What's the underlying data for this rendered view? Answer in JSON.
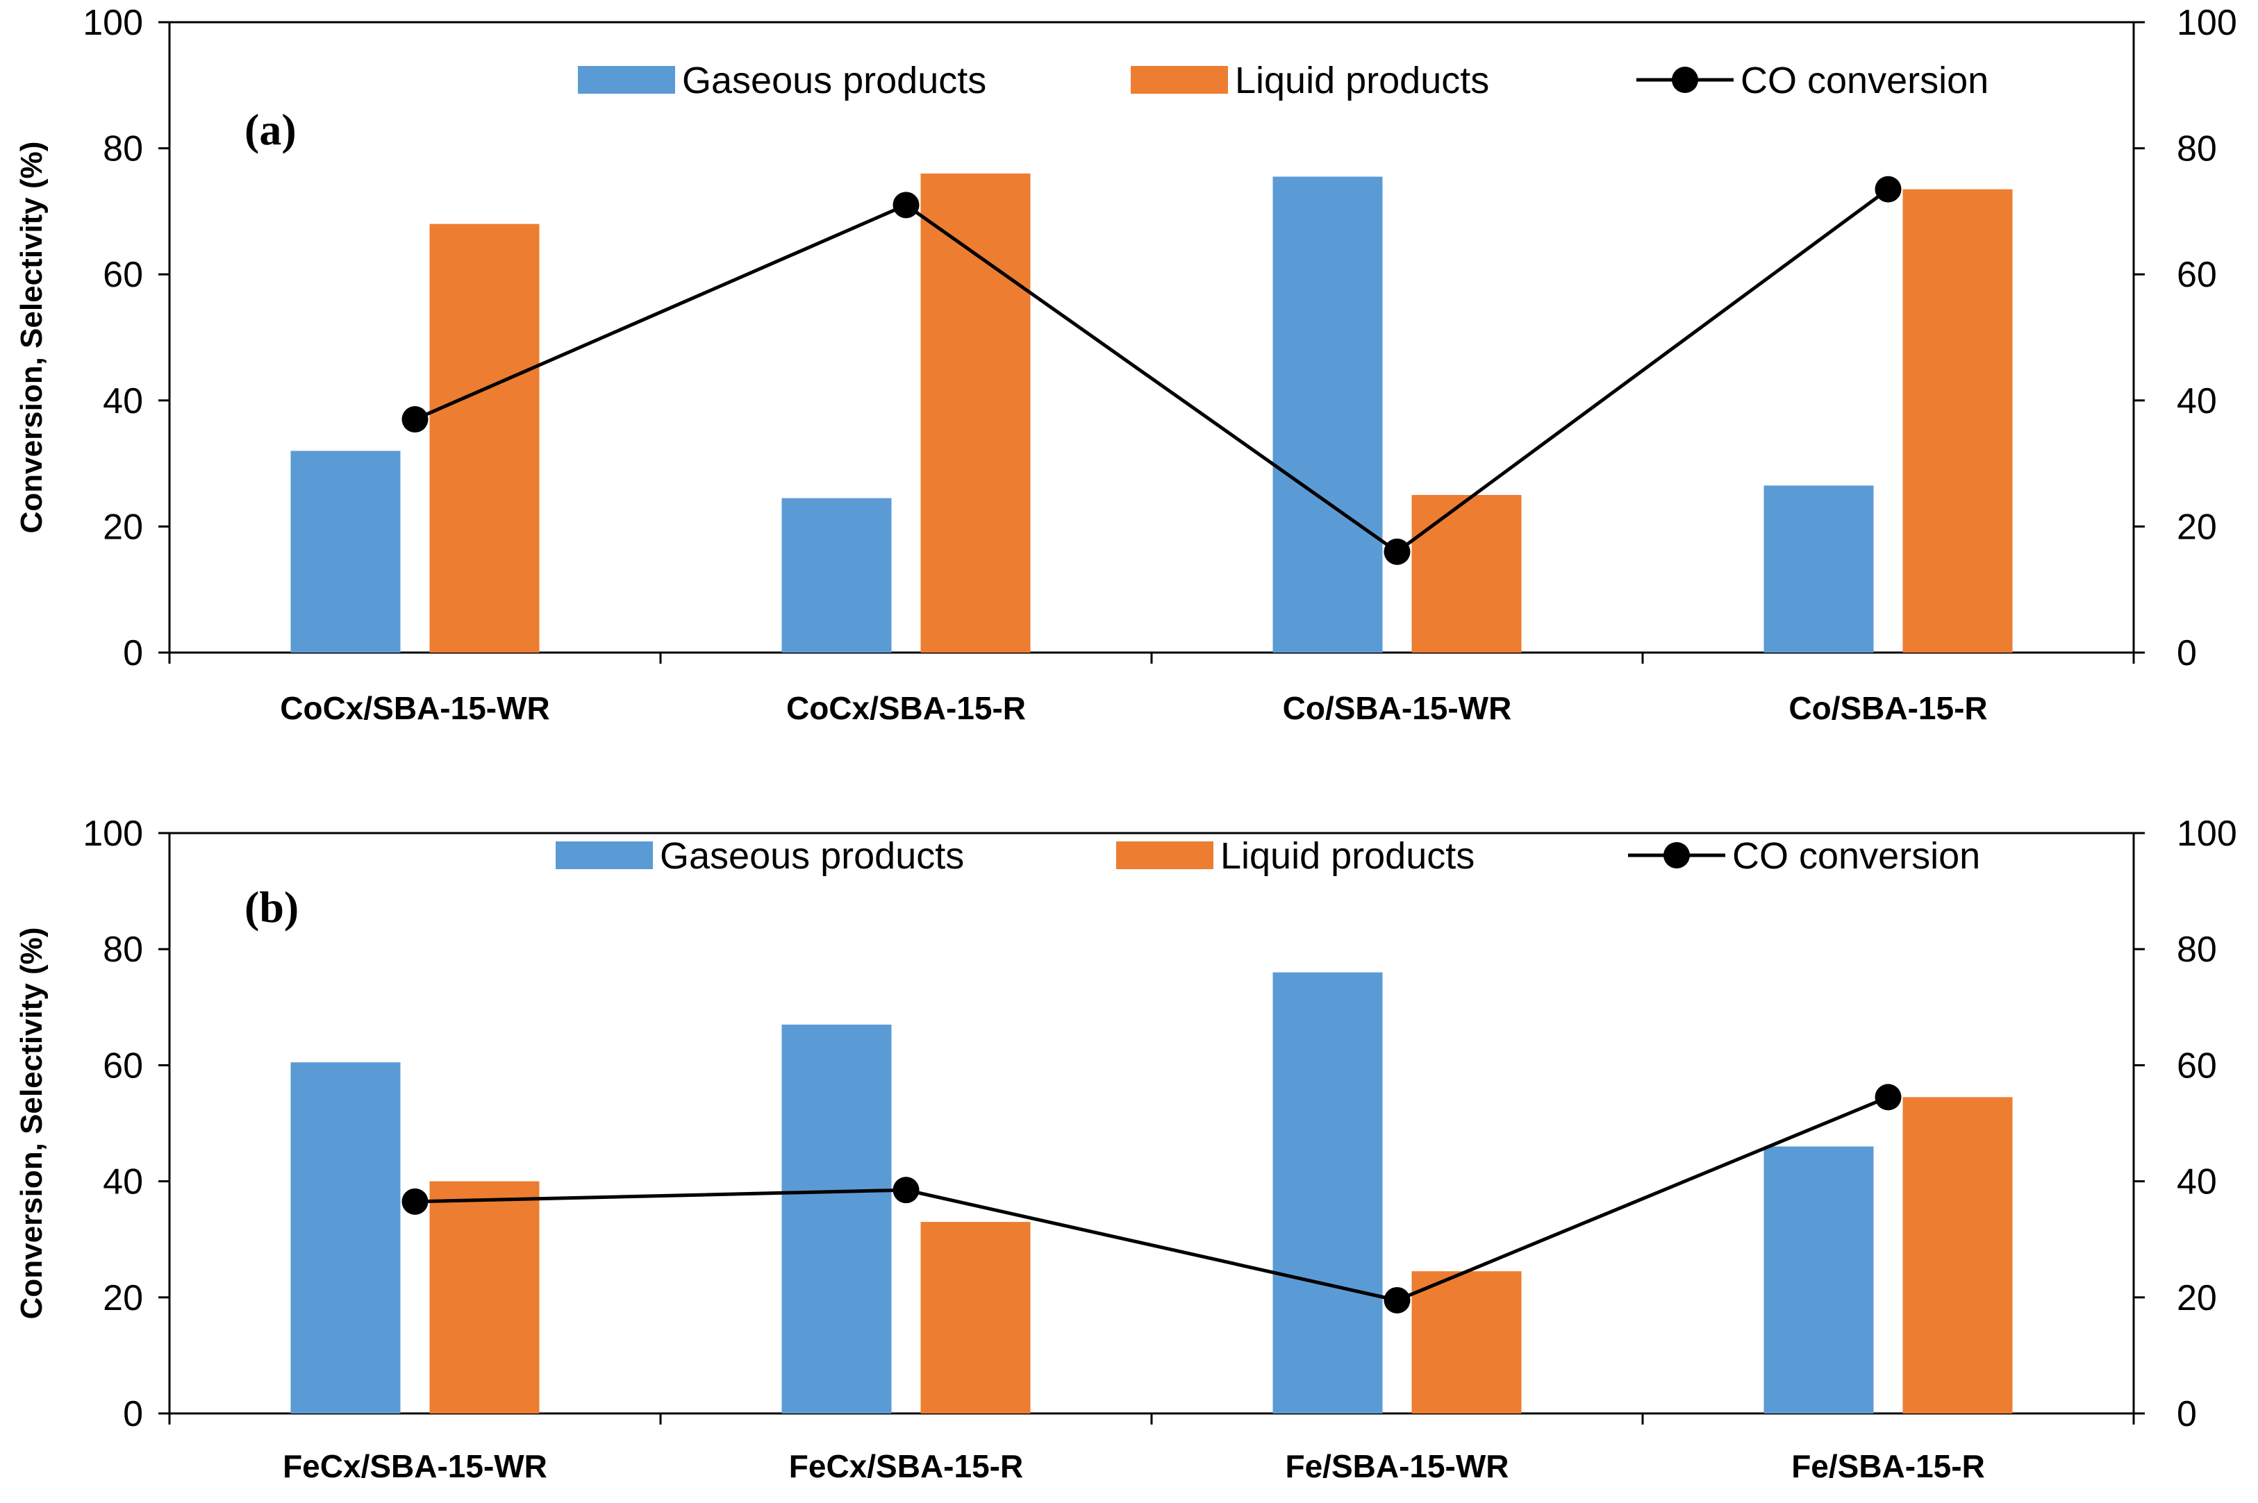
{
  "figure": {
    "colors": {
      "gaseous": "#5B9BD5",
      "liquid": "#ED7D31",
      "line": "#000000",
      "axis": "#000000"
    }
  },
  "chart_data": [
    {
      "type": "bar",
      "panel_label": "(a)",
      "categories": [
        "CoCx/SBA-15-WR",
        "CoCx/SBA-15-R",
        "Co/SBA-15-WR",
        "Co/SBA-15-R"
      ],
      "series": [
        {
          "name": "Gaseous products",
          "kind": "bar",
          "values": [
            32,
            24.5,
            75.5,
            26.5
          ]
        },
        {
          "name": "Liquid products",
          "kind": "bar",
          "values": [
            68,
            76,
            25,
            73.5
          ]
        },
        {
          "name": "CO conversion",
          "kind": "line",
          "values": [
            37,
            71,
            16,
            73.5
          ]
        }
      ],
      "ylabel": "Conversion, Selectivity (%)",
      "ylim": [
        0,
        100
      ],
      "yticks": [
        0,
        20,
        40,
        60,
        80,
        100
      ],
      "y2ticks": [
        0,
        20,
        40,
        60,
        80,
        100
      ],
      "legend": "top"
    },
    {
      "type": "bar",
      "panel_label": "(b)",
      "categories": [
        "FeCx/SBA-15-WR",
        "FeCx/SBA-15-R",
        "Fe/SBA-15-WR",
        "Fe/SBA-15-R"
      ],
      "series": [
        {
          "name": "Gaseous products",
          "kind": "bar",
          "values": [
            60.5,
            67,
            76,
            46
          ]
        },
        {
          "name": "Liquid products",
          "kind": "bar",
          "values": [
            40,
            33,
            24.5,
            54.5
          ]
        },
        {
          "name": "CO conversion",
          "kind": "line",
          "values": [
            36.5,
            38.5,
            19.5,
            54.5
          ]
        }
      ],
      "ylabel": "Conversion, Selectivity (%)",
      "ylim": [
        0,
        100
      ],
      "yticks": [
        0,
        20,
        40,
        60,
        80,
        100
      ],
      "y2ticks": [
        0,
        20,
        40,
        60,
        80,
        100
      ],
      "legend": "top"
    }
  ]
}
